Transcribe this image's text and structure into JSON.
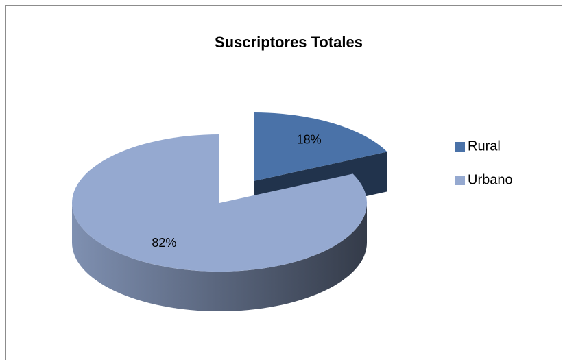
{
  "chart_data": {
    "type": "pie",
    "title": "Suscriptores Totales",
    "categories": [
      "Rural",
      "Urbano"
    ],
    "values": [
      18,
      82
    ],
    "value_labels": [
      "18%",
      "82%"
    ],
    "colors": [
      "#4a72a8",
      "#95a9d0"
    ],
    "legend": "right",
    "exploded": [
      0
    ]
  }
}
